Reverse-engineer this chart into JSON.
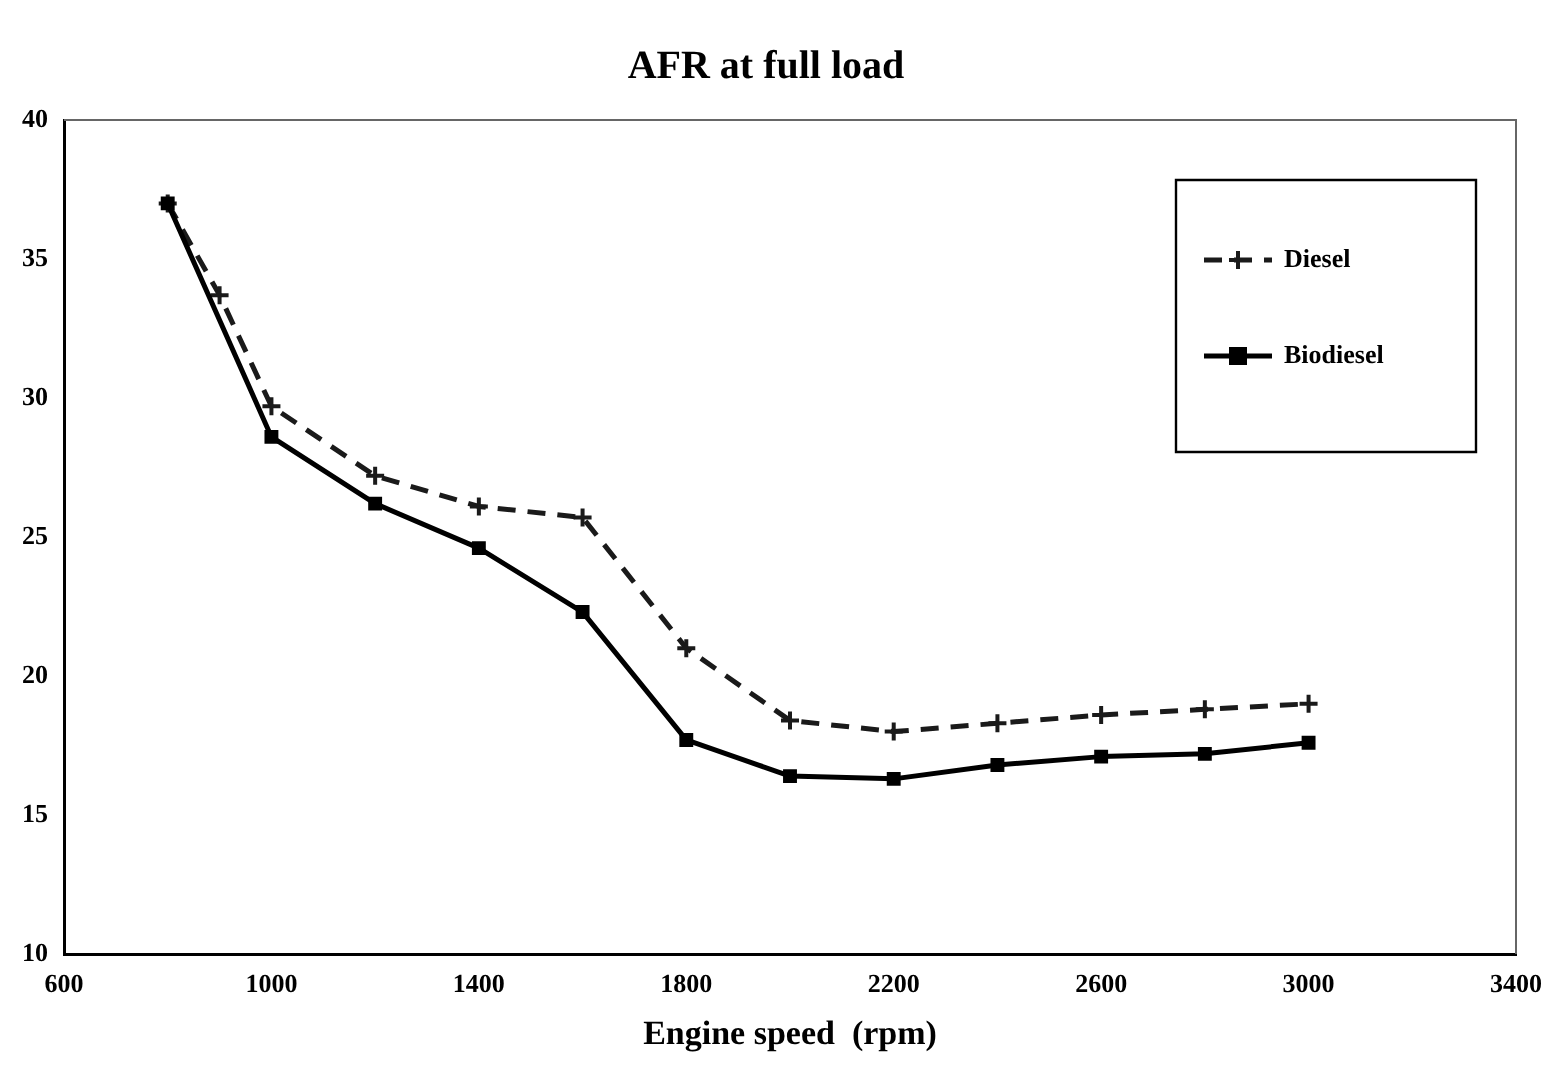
{
  "chart_data": {
    "type": "line",
    "title": "AFR at full load",
    "xlabel": "Engine speed  (rpm)",
    "xlim": [
      600,
      3400
    ],
    "xticks": [
      600,
      1000,
      1400,
      1800,
      2200,
      2600,
      3000,
      3400
    ],
    "ylim": [
      10,
      40
    ],
    "yticks": [
      10,
      15,
      20,
      25,
      30,
      35,
      40
    ],
    "grid": false,
    "legend": "top right",
    "series": [
      {
        "name": "Diesel",
        "color": "#1a1a1a",
        "line_style": "dashed",
        "marker": "cross",
        "x": [
          800,
          900,
          1000,
          1200,
          1400,
          1600,
          1800,
          2000,
          2200,
          2400,
          2600,
          2800,
          3000
        ],
        "values": [
          37,
          33.7,
          29.7,
          27.2,
          26.1,
          25.7,
          21.0,
          18.4,
          18.0,
          18.3,
          18.6,
          18.8,
          19.0
        ]
      },
      {
        "name": "Biodiesel",
        "color": "#000000",
        "line_style": "solid",
        "marker": "square",
        "x": [
          800,
          1000,
          1200,
          1400,
          1600,
          1800,
          2000,
          2200,
          2400,
          2600,
          2800,
          3000
        ],
        "values": [
          37,
          28.6,
          26.2,
          24.6,
          22.3,
          17.7,
          16.4,
          16.3,
          16.8,
          17.1,
          17.2,
          17.6
        ]
      }
    ]
  }
}
